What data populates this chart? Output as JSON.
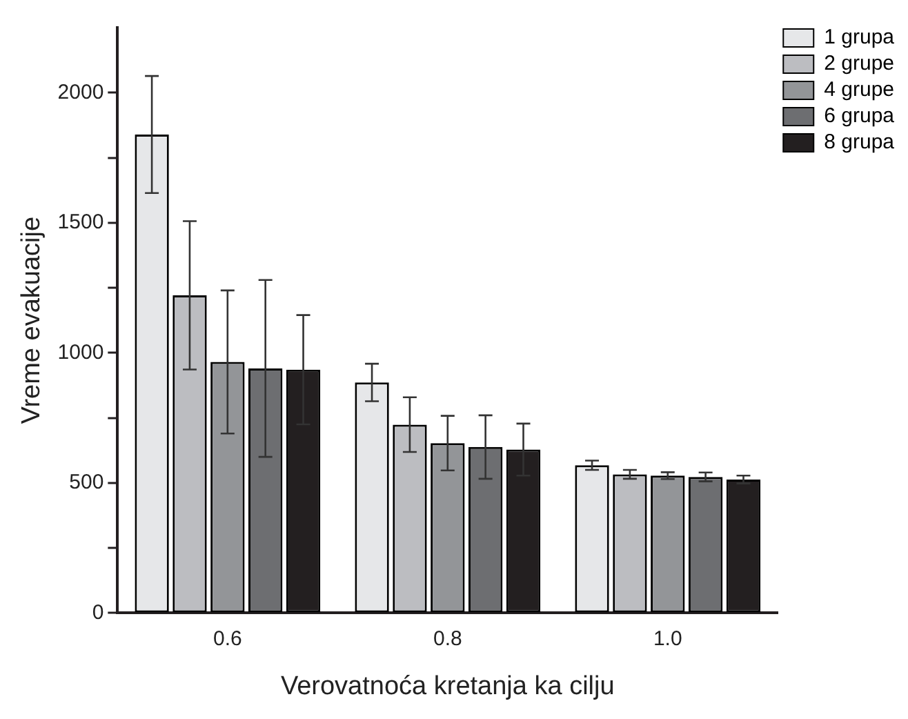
{
  "chart_data": {
    "type": "bar",
    "xlabel": "Verovatnoća kretanja ka cilju",
    "ylabel": "Vreme evakuacije",
    "categories": [
      "0.6",
      "0.8",
      "1.0"
    ],
    "series": [
      {
        "name": "1 grupa",
        "color": "#e6e7e9",
        "values": [
          1839,
          886,
          568
        ],
        "errors": [
          225,
          72,
          18
        ]
      },
      {
        "name": "2 grupe",
        "color": "#bcbdc1",
        "values": [
          1221,
          724,
          533
        ],
        "errors": [
          285,
          105,
          17
        ]
      },
      {
        "name": "4 grupe",
        "color": "#939598",
        "values": [
          965,
          653,
          528
        ],
        "errors": [
          275,
          105,
          13
        ]
      },
      {
        "name": "6 grupa",
        "color": "#6d6e71",
        "values": [
          940,
          638,
          523
        ],
        "errors": [
          340,
          122,
          17
        ]
      },
      {
        "name": "8 grupa",
        "color": "#231f20",
        "values": [
          935,
          628,
          513
        ],
        "errors": [
          210,
          100,
          15
        ]
      }
    ],
    "ylim": [
      0,
      2250
    ],
    "yticks": [
      0,
      {
        "value": 250,
        "label": null
      },
      500,
      {
        "value": 750,
        "label": null
      },
      1000,
      {
        "value": 1250,
        "label": null
      },
      1500,
      {
        "value": 1750,
        "label": null
      },
      2000
    ],
    "grid": false,
    "legend": "top right"
  }
}
